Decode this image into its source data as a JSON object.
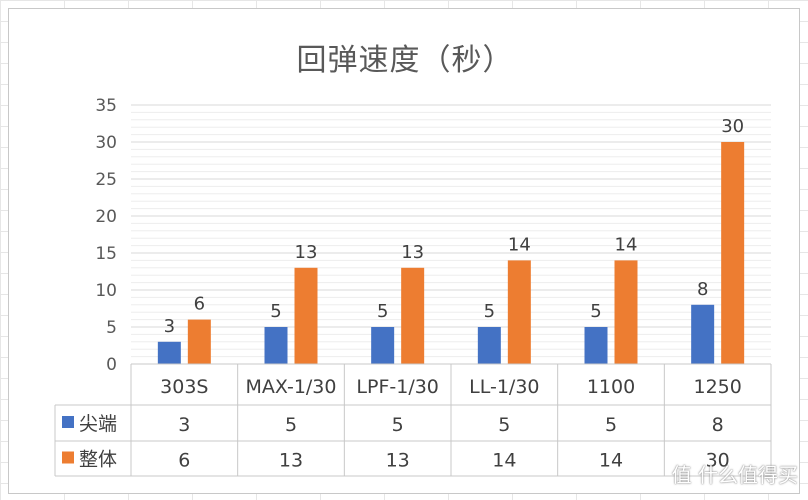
{
  "colors": {
    "series_1": "#4472C4",
    "series_2": "#ED7D31",
    "grid_major": "#d9d9d9",
    "grid_minor": "#ededed",
    "text": "#595959"
  },
  "chart_data": {
    "type": "bar",
    "title": "回弹速度（秒）",
    "categories": [
      "303S",
      "MAX-1/30",
      "LPF-1/30",
      "LL-1/30",
      "1100",
      "1250"
    ],
    "series": [
      {
        "name": "尖端",
        "values": [
          3,
          5,
          5,
          5,
          5,
          8
        ]
      },
      {
        "name": "整体",
        "values": [
          6,
          13,
          13,
          14,
          14,
          30
        ]
      }
    ],
    "yticks": [
      "0",
      "5",
      "10",
      "15",
      "20",
      "25",
      "30",
      "35"
    ],
    "ylim": [
      0,
      35
    ],
    "grid": true,
    "legend": "data-table",
    "data_table": {
      "rows": [
        {
          "series": "尖端",
          "cells": [
            "3",
            "5",
            "5",
            "5",
            "5",
            "8"
          ]
        },
        {
          "series": "整体",
          "cells": [
            "6",
            "13",
            "13",
            "14",
            "14",
            "30"
          ]
        }
      ]
    }
  },
  "watermark": "值 什么值得买"
}
